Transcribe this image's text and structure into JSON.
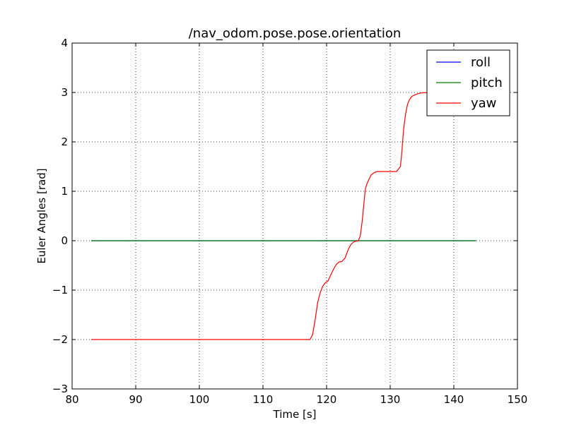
{
  "chart_data": {
    "type": "line",
    "title": "/nav_odom.pose.pose.orientation",
    "xlabel": "Time [s]",
    "ylabel": "Euler Angles [rad]",
    "xlim": [
      80,
      150
    ],
    "ylim": [
      -3,
      4
    ],
    "xticks": [
      80,
      90,
      100,
      110,
      120,
      130,
      140,
      150
    ],
    "yticks": [
      -3,
      -2,
      -1,
      0,
      1,
      2,
      3,
      4
    ],
    "xtick_labels": [
      "80",
      "90",
      "100",
      "110",
      "120",
      "130",
      "140",
      "150"
    ],
    "ytick_labels": [
      "−3",
      "−2",
      "−1",
      "0",
      "1",
      "2",
      "3",
      "4"
    ],
    "grid": true,
    "legend_position": "top-right",
    "series": [
      {
        "name": "roll",
        "color": "#0000ff",
        "x": [
          83,
          143.5
        ],
        "y": [
          0,
          0
        ]
      },
      {
        "name": "pitch",
        "color": "#008000",
        "x": [
          83,
          143.5
        ],
        "y": [
          0,
          0
        ]
      },
      {
        "name": "yaw",
        "color": "#ff0000",
        "x": [
          83,
          117.4,
          117.8,
          118.2,
          118.6,
          119.0,
          119.4,
          119.8,
          120.2,
          120.7,
          121.2,
          121.6,
          122.0,
          122.4,
          122.9,
          123.4,
          123.8,
          124.2,
          124.6,
          125.0,
          125.3,
          125.6,
          125.9,
          126.1,
          126.4,
          126.7,
          127.0,
          127.5,
          128.0,
          129.0,
          131.0,
          131.6,
          131.8,
          132.1,
          132.4,
          132.7,
          133.0,
          133.4,
          134.0,
          134.8,
          136.0,
          137.0
        ],
        "y": [
          -2.0,
          -2.0,
          -1.9,
          -1.6,
          -1.25,
          -1.05,
          -0.92,
          -0.85,
          -0.82,
          -0.68,
          -0.55,
          -0.47,
          -0.43,
          -0.42,
          -0.35,
          -0.18,
          -0.08,
          -0.03,
          -0.01,
          0.0,
          0.1,
          0.4,
          0.8,
          1.05,
          1.17,
          1.25,
          1.33,
          1.38,
          1.4,
          1.4,
          1.4,
          1.5,
          1.75,
          2.25,
          2.55,
          2.75,
          2.85,
          2.92,
          2.96,
          2.99,
          3.0,
          3.0
        ]
      }
    ]
  }
}
